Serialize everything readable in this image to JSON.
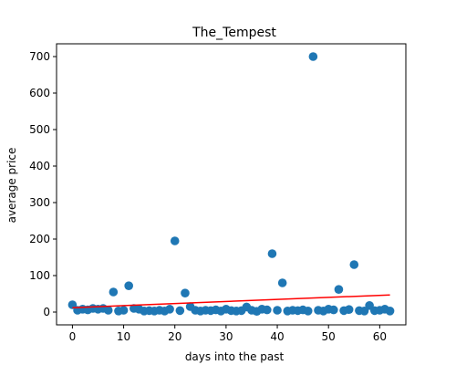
{
  "chart_data": {
    "type": "scatter",
    "title": "The_Tempest",
    "xlabel": "days into the past",
    "ylabel": "average price",
    "xlim": [
      -3.1,
      65.1
    ],
    "ylim": [
      -35,
      735
    ],
    "xticks": [
      0,
      10,
      20,
      30,
      40,
      50,
      60
    ],
    "yticks": [
      0,
      100,
      200,
      300,
      400,
      500,
      600,
      700
    ],
    "grid": false,
    "legend": "none",
    "series": [
      {
        "color": "#1f77b4",
        "x": [
          0,
          1,
          2,
          3,
          4,
          5,
          6,
          7,
          8,
          9,
          10,
          11,
          12,
          13,
          14,
          15,
          16,
          17,
          18,
          19,
          20,
          21,
          22,
          23,
          24,
          25,
          26,
          27,
          28,
          29,
          30,
          31,
          32,
          33,
          34,
          35,
          36,
          37,
          38,
          39,
          40,
          41,
          42,
          43,
          44,
          45,
          46,
          47,
          48,
          49,
          50,
          51,
          52,
          53,
          54,
          55,
          56,
          57,
          58,
          59,
          60,
          61,
          62
        ],
        "y": [
          20,
          5,
          8,
          6,
          10,
          8,
          10,
          5,
          55,
          3,
          5,
          72,
          10,
          8,
          3,
          4,
          3,
          5,
          3,
          8,
          195,
          4,
          52,
          15,
          5,
          3,
          5,
          4,
          6,
          3,
          8,
          4,
          3,
          4,
          14,
          5,
          2,
          8,
          6,
          160,
          5,
          80,
          3,
          5,
          4,
          6,
          3,
          700,
          5,
          3,
          8,
          6,
          62,
          4,
          7,
          130,
          4,
          3,
          18,
          4,
          5,
          8,
          3
        ]
      }
    ],
    "trendline": {
      "color": "#ff0000",
      "x": [
        0,
        62
      ],
      "y": [
        12,
        47
      ]
    }
  }
}
